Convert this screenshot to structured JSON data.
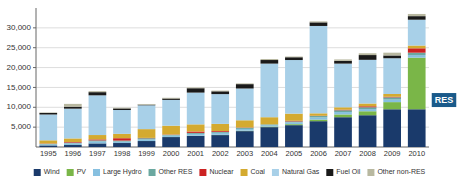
{
  "chart_data": {
    "type": "bar",
    "stacked": true,
    "grid": true,
    "legend": "bottom",
    "categories": [
      "1995",
      "1996",
      "1997",
      "1998",
      "1999",
      "2000",
      "2001",
      "2002",
      "2003",
      "2004",
      "2005",
      "2006",
      "2007",
      "2008",
      "2009",
      "2010"
    ],
    "series": [
      {
        "name": "Wind",
        "color": "#1a3a6b",
        "values": [
          400,
          500,
          900,
          1000,
          1500,
          2500,
          2800,
          3000,
          4000,
          5000,
          5500,
          6500,
          7500,
          8000,
          9500,
          9500
        ]
      },
      {
        "name": "PV",
        "color": "#7ab648",
        "values": [
          5,
          8,
          12,
          15,
          20,
          30,
          50,
          70,
          100,
          150,
          250,
          400,
          700,
          1000,
          1800,
          13000
        ]
      },
      {
        "name": "Large Hydro",
        "color": "#87c0e0",
        "values": [
          250,
          400,
          500,
          350,
          400,
          350,
          450,
          500,
          450,
          350,
          450,
          550,
          600,
          550,
          650,
          650
        ]
      },
      {
        "name": "Other RES",
        "color": "#6ba8a0",
        "values": [
          150,
          200,
          250,
          250,
          300,
          200,
          250,
          250,
          300,
          200,
          250,
          350,
          450,
          450,
          550,
          600
        ]
      },
      {
        "name": "Nuclear",
        "color": "#cc2222",
        "values": [
          80,
          150,
          250,
          600,
          80,
          80,
          350,
          200,
          80,
          0,
          150,
          80,
          150,
          250,
          150,
          1100
        ]
      },
      {
        "name": "Coal",
        "color": "#d4aa30",
        "values": [
          800,
          900,
          1100,
          1100,
          2200,
          2200,
          1800,
          1800,
          1800,
          1800,
          1800,
          600,
          600,
          700,
          700,
          700
        ]
      },
      {
        "name": "Natural Gas",
        "color": "#a8d0e8",
        "values": [
          6500,
          7500,
          10000,
          6000,
          6000,
          6500,
          8000,
          7500,
          8000,
          13500,
          13500,
          22000,
          11000,
          11000,
          9000,
          6500
        ]
      },
      {
        "name": "Fuel Oil",
        "color": "#1a1a1a",
        "values": [
          400,
          500,
          800,
          400,
          150,
          350,
          1100,
          700,
          1100,
          900,
          700,
          900,
          700,
          1200,
          700,
          900
        ]
      },
      {
        "name": "Other non-RES",
        "color": "#b8b8a0",
        "values": [
          100,
          700,
          250,
          180,
          180,
          180,
          180,
          180,
          180,
          250,
          180,
          250,
          350,
          450,
          700,
          550
        ]
      }
    ],
    "ylim": [
      0,
      35000
    ],
    "yticks": [
      {
        "value": 5000,
        "label": "5,000"
      },
      {
        "value": 10000,
        "label": "10,000"
      },
      {
        "value": 15000,
        "label": "15,000"
      },
      {
        "value": 20000,
        "label": "20,000"
      },
      {
        "value": 25000,
        "label": "25,000"
      },
      {
        "value": 30000,
        "label": "30,000"
      }
    ],
    "annotations": [
      "RES"
    ]
  }
}
